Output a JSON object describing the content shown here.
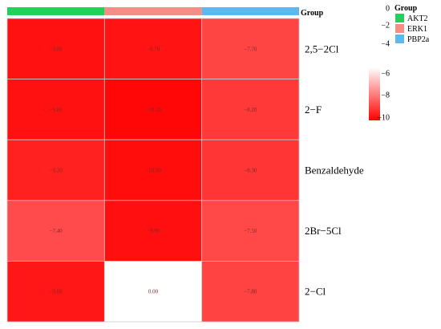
{
  "chart_data": {
    "type": "heatmap",
    "columns": [
      "AKT2",
      "ERK1",
      "PBP2a"
    ],
    "rows": [
      "2,5−2Cl",
      "2−F",
      "Benzaldehyde",
      "2Br−5Cl",
      "2−Cl"
    ],
    "values": [
      [
        -9.8,
        -9.7,
        -7.7
      ],
      [
        -9.8,
        -10.2,
        -8.2
      ],
      [
        -9.2,
        -10.0,
        -8.3
      ],
      [
        -7.4,
        -9.9,
        -7.5
      ],
      [
        -9.6,
        0.0,
        -7.8
      ]
    ],
    "cell_labels": [
      [
        "−9.80",
        "−9.70",
        "−7.70"
      ],
      [
        "−9.80",
        "−10.20",
        "−8.20"
      ],
      [
        "−9.20",
        "−10.00",
        "−8.30"
      ],
      [
        "−7.40",
        "−9.90",
        "−7.50"
      ],
      [
        "−9.60",
        "0.00",
        "−7.80"
      ]
    ],
    "annotation": {
      "title": "Group",
      "legend_title": "Group",
      "groups": [
        {
          "name": "AKT2",
          "color": "#22d05a"
        },
        {
          "name": "ERK1",
          "color": "#f58f86"
        },
        {
          "name": "PBP2a",
          "color": "#5cb8ef"
        }
      ]
    },
    "color_scale": {
      "ticks": [
        "0",
        "−2",
        "−4",
        "−6",
        "−8",
        "−10"
      ],
      "gradient_ticks": [
        -6,
        -8,
        -10
      ],
      "white_value": 0,
      "white_color": "#ffffff",
      "max_color": "#ff0000",
      "range": [
        -10.5,
        0
      ]
    }
  }
}
